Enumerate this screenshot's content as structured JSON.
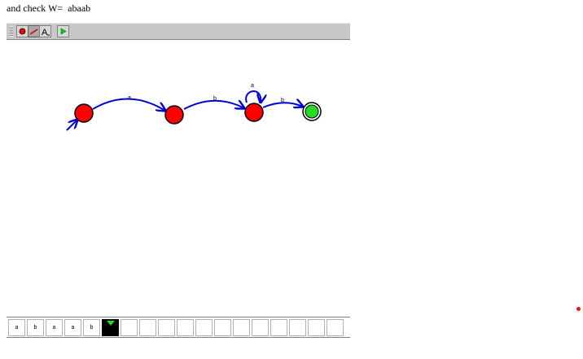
{
  "instruction": "and check W=  abaab",
  "toolbar": {
    "tools": [
      {
        "name": "state-tool",
        "icon": "red-circle-icon"
      },
      {
        "name": "transition-tool",
        "icon": "arrow-pen-icon"
      },
      {
        "name": "label-tool",
        "icon": "text-A-icon"
      },
      {
        "name": "run-tool",
        "icon": "green-play-icon"
      }
    ]
  },
  "automaton": {
    "states": [
      {
        "id": "q0",
        "initial": true,
        "final": false
      },
      {
        "id": "q1",
        "initial": false,
        "final": false
      },
      {
        "id": "q2",
        "initial": false,
        "final": false
      },
      {
        "id": "q3",
        "initial": false,
        "final": true
      }
    ],
    "transitions": [
      {
        "from": "q0",
        "to": "q1",
        "label": "a"
      },
      {
        "from": "q1",
        "to": "q2",
        "label": "b"
      },
      {
        "from": "q2",
        "to": "q2",
        "label": "a"
      },
      {
        "from": "q2",
        "to": "q3",
        "label": "b"
      }
    ],
    "colors": {
      "state": "#ff0000",
      "final": "#22dd22",
      "edge": "#0000dd"
    }
  },
  "tape": {
    "symbols": [
      "a",
      "b",
      "a",
      "a",
      "b"
    ],
    "head_index": 5,
    "cell_count": 18
  }
}
